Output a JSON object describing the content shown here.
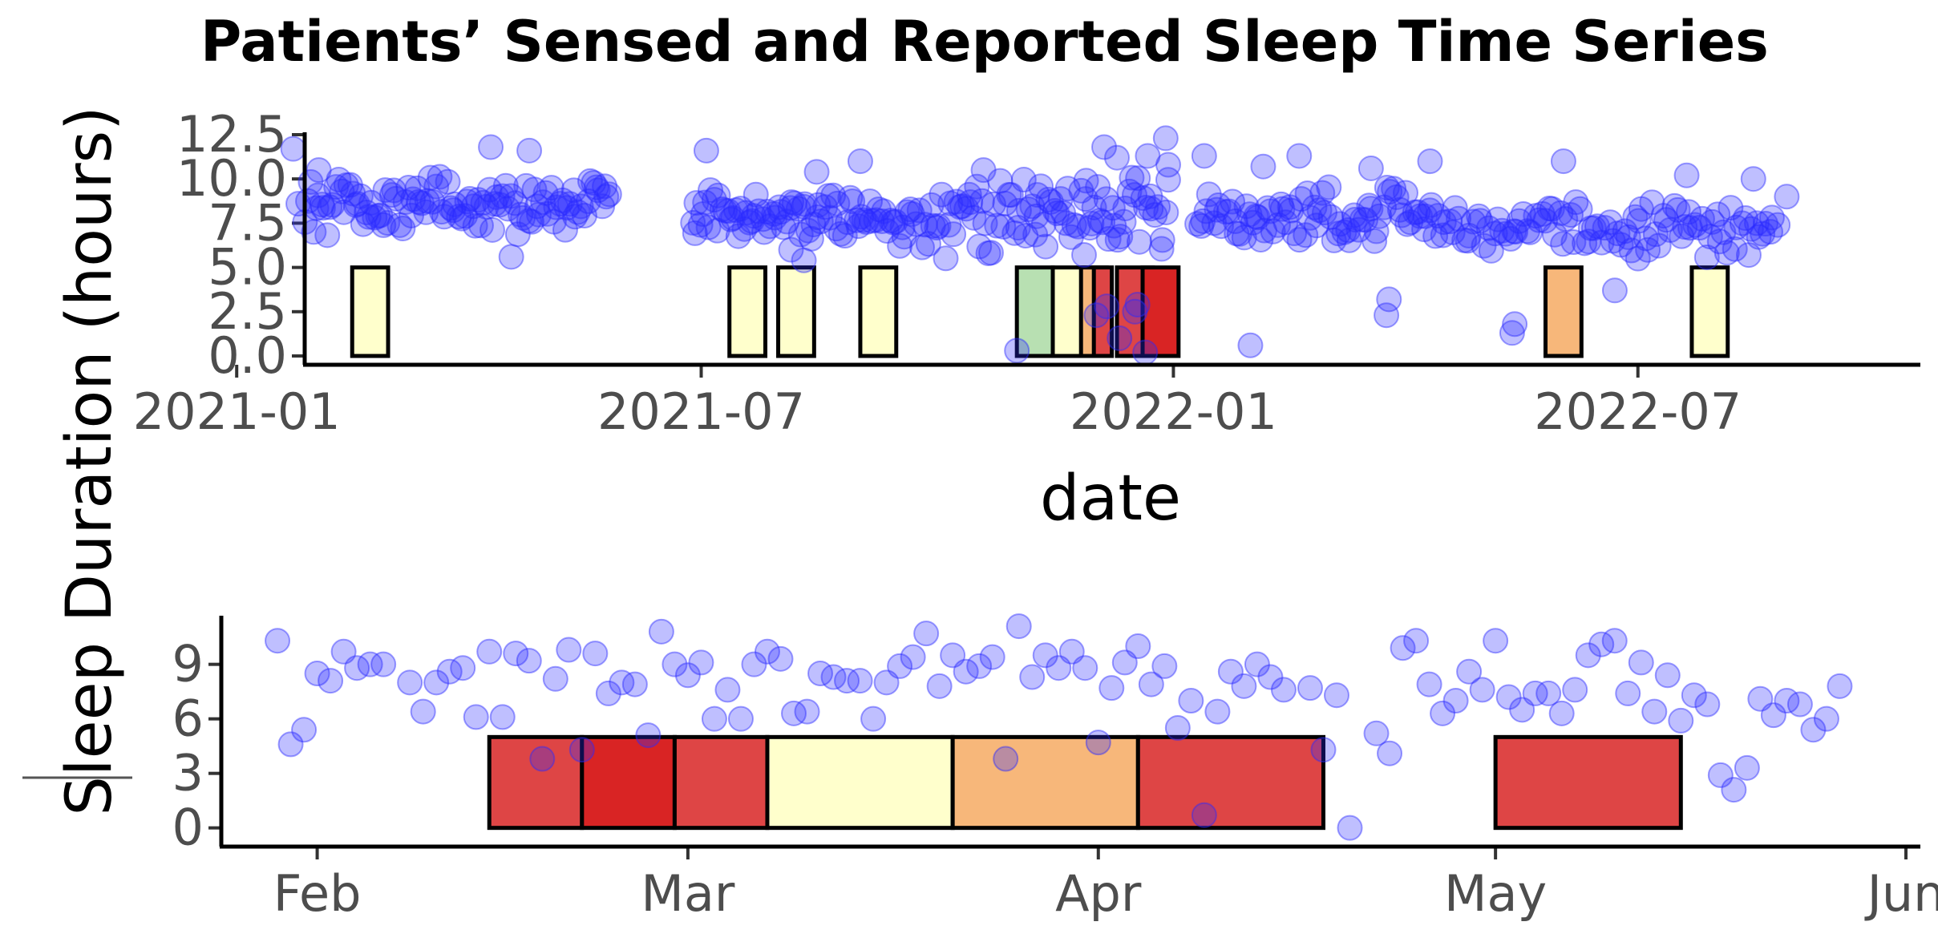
{
  "title": "Patients’ Sensed and Reported Sleep Time Series",
  "ylabel": "Sleep Duration (hours)",
  "chart_data": [
    {
      "type": "scatter",
      "panel": "overview",
      "xlabel": "date",
      "x_axis": "date",
      "xlim": [
        "2020-12-21",
        "2022-10-15"
      ],
      "ylim": [
        0,
        12.5
      ],
      "x_ticks": [
        "2021-01-01",
        "2021-07-01",
        "2022-01-01",
        "2022-07-01"
      ],
      "x_tick_labels": [
        "2021-01",
        "2021-07",
        "2022-01",
        "2022-07"
      ],
      "y_ticks": [
        0,
        2.5,
        5,
        7.5,
        10,
        12.5
      ],
      "y_tick_labels": [
        "0.0",
        "2.5",
        "5.0",
        "7.5",
        "10.0",
        "12.5"
      ],
      "grid": false,
      "point_color": "#2b2bff",
      "segments": [
        {
          "start": "2021-01-27",
          "end": "2021-05-27",
          "mean": 8.6,
          "jitter": 1.2,
          "count": 110
        },
        {
          "start": "2021-06-27",
          "end": "2021-08-24",
          "mean": 8.0,
          "jitter": 1.1,
          "count": 55
        },
        {
          "start": "2021-08-24",
          "end": "2021-10-25",
          "mean": 7.6,
          "jitter": 1.3,
          "count": 55
        },
        {
          "start": "2021-10-25",
          "end": "2021-12-31",
          "mean": 7.8,
          "jitter": 1.6,
          "count": 60
        },
        {
          "start": "2022-01-10",
          "end": "2022-04-15",
          "mean": 7.9,
          "jitter": 1.1,
          "count": 80
        },
        {
          "start": "2022-04-15",
          "end": "2022-08-25",
          "mean": 7.3,
          "jitter": 1.1,
          "count": 95
        }
      ],
      "extra_points": [
        {
          "x": "2021-01-23",
          "y": 11.7
        },
        {
          "x": "2021-01-25",
          "y": 8.6
        },
        {
          "x": "2021-02-02",
          "y": 10.5
        },
        {
          "x": "2021-04-10",
          "y": 11.8
        },
        {
          "x": "2021-04-25",
          "y": 11.6
        },
        {
          "x": "2021-04-18",
          "y": 5.6
        },
        {
          "x": "2021-07-03",
          "y": 11.6
        },
        {
          "x": "2021-08-15",
          "y": 10.4
        },
        {
          "x": "2021-08-05",
          "y": 6.0
        },
        {
          "x": "2021-08-10",
          "y": 5.4
        },
        {
          "x": "2021-09-01",
          "y": 11.0
        },
        {
          "x": "2021-10-19",
          "y": 10.5
        },
        {
          "x": "2021-11-01",
          "y": 0.3
        },
        {
          "x": "2021-11-09",
          "y": 9.1
        },
        {
          "x": "2021-11-28",
          "y": 9.9
        },
        {
          "x": "2021-12-05",
          "y": 11.8
        },
        {
          "x": "2021-12-10",
          "y": 11.2
        },
        {
          "x": "2021-12-22",
          "y": 11.3
        },
        {
          "x": "2021-12-29",
          "y": 12.3
        },
        {
          "x": "2021-12-30",
          "y": 10.8
        },
        {
          "x": "2021-12-06",
          "y": 2.8
        },
        {
          "x": "2021-12-02",
          "y": 2.3
        },
        {
          "x": "2021-12-11",
          "y": 1.0
        },
        {
          "x": "2021-12-18",
          "y": 2.9
        },
        {
          "x": "2021-12-21",
          "y": 0.2
        },
        {
          "x": "2021-12-17",
          "y": 2.5
        },
        {
          "x": "2022-01-31",
          "y": 0.6
        },
        {
          "x": "2022-01-13",
          "y": 11.3
        },
        {
          "x": "2022-02-05",
          "y": 10.7
        },
        {
          "x": "2022-02-19",
          "y": 11.3
        },
        {
          "x": "2022-03-19",
          "y": 10.6
        },
        {
          "x": "2022-03-25",
          "y": 2.3
        },
        {
          "x": "2022-03-26",
          "y": 3.2
        },
        {
          "x": "2022-04-11",
          "y": 11.0
        },
        {
          "x": "2022-05-13",
          "y": 1.3
        },
        {
          "x": "2022-05-14",
          "y": 1.8
        },
        {
          "x": "2022-06-02",
          "y": 11.0
        },
        {
          "x": "2022-06-22",
          "y": 3.7
        },
        {
          "x": "2022-07-01",
          "y": 5.5
        },
        {
          "x": "2022-07-20",
          "y": 10.2
        },
        {
          "x": "2022-08-15",
          "y": 10.0
        },
        {
          "x": "2022-08-28",
          "y": 9.0
        }
      ],
      "bands": [
        {
          "start": "2021-02-15",
          "end": "2021-03-01",
          "ymin": 0,
          "ymax": 5,
          "fill": "#ffffcc"
        },
        {
          "start": "2021-07-12",
          "end": "2021-07-26",
          "ymin": 0,
          "ymax": 5,
          "fill": "#ffffcc"
        },
        {
          "start": "2021-07-31",
          "end": "2021-08-14",
          "ymin": 0,
          "ymax": 5,
          "fill": "#ffffcc"
        },
        {
          "start": "2021-09-01",
          "end": "2021-09-15",
          "ymin": 0,
          "ymax": 5,
          "fill": "#ffffcc"
        },
        {
          "start": "2021-11-01",
          "end": "2021-11-15",
          "ymin": 0,
          "ymax": 5,
          "fill": "#b8e0b2"
        },
        {
          "start": "2021-11-15",
          "end": "2021-11-29",
          "ymin": 0,
          "ymax": 5,
          "fill": "#ffffcc"
        },
        {
          "start": "2021-11-26",
          "end": "2021-12-06",
          "ymin": 0,
          "ymax": 5,
          "fill": "#f7b77a"
        },
        {
          "start": "2021-12-01",
          "end": "2021-12-08",
          "ymin": 0,
          "ymax": 5,
          "fill": "#de4545"
        },
        {
          "start": "2021-12-10",
          "end": "2021-12-24",
          "ymin": 0,
          "ymax": 5,
          "fill": "#de4545"
        },
        {
          "start": "2021-12-20",
          "end": "2022-01-03",
          "ymin": 0,
          "ymax": 5,
          "fill": "#d92424"
        },
        {
          "start": "2022-05-26",
          "end": "2022-06-09",
          "ymin": 0,
          "ymax": 5,
          "fill": "#f7b77a"
        },
        {
          "start": "2022-07-22",
          "end": "2022-08-05",
          "ymin": 0,
          "ymax": 5,
          "fill": "#ffffcc"
        }
      ]
    },
    {
      "type": "scatter",
      "panel": "detail",
      "x_axis": "date",
      "xlim": [
        "2022-01-25",
        "2022-06-01"
      ],
      "ylim": [
        -0.5,
        11.5
      ],
      "x_ticks": [
        "2022-02-01",
        "2022-03-01",
        "2022-04-01",
        "2022-05-01",
        "2022-06-01"
      ],
      "x_tick_labels": [
        "Feb",
        "Mar",
        "Apr",
        "May",
        "Jun"
      ],
      "y_ticks": [
        0,
        3,
        6,
        9
      ],
      "y_tick_labels": [
        "0",
        "3",
        "6",
        "9"
      ],
      "grid": false,
      "point_color": "#2b2bff",
      "points": [
        {
          "x": "2022-01-29",
          "y": 10.3
        },
        {
          "x": "2022-01-30",
          "y": 4.6
        },
        {
          "x": "2022-01-31",
          "y": 5.4
        },
        {
          "x": "2022-02-01",
          "y": 8.5
        },
        {
          "x": "2022-02-02",
          "y": 8.1
        },
        {
          "x": "2022-02-03",
          "y": 9.7
        },
        {
          "x": "2022-02-04",
          "y": 8.8
        },
        {
          "x": "2022-02-05",
          "y": 9.0
        },
        {
          "x": "2022-02-06",
          "y": 9.0
        },
        {
          "x": "2022-02-08",
          "y": 8.0
        },
        {
          "x": "2022-02-09",
          "y": 6.4
        },
        {
          "x": "2022-02-10",
          "y": 8.0
        },
        {
          "x": "2022-02-11",
          "y": 8.6
        },
        {
          "x": "2022-02-12",
          "y": 8.8
        },
        {
          "x": "2022-02-13",
          "y": 6.1
        },
        {
          "x": "2022-02-14",
          "y": 9.7
        },
        {
          "x": "2022-02-15",
          "y": 6.1
        },
        {
          "x": "2022-02-16",
          "y": 9.6
        },
        {
          "x": "2022-02-17",
          "y": 9.2
        },
        {
          "x": "2022-02-18",
          "y": 3.8
        },
        {
          "x": "2022-02-19",
          "y": 8.2
        },
        {
          "x": "2022-02-20",
          "y": 9.8
        },
        {
          "x": "2022-02-21",
          "y": 4.3
        },
        {
          "x": "2022-02-22",
          "y": 9.6
        },
        {
          "x": "2022-02-23",
          "y": 7.4
        },
        {
          "x": "2022-02-24",
          "y": 8.0
        },
        {
          "x": "2022-02-25",
          "y": 7.9
        },
        {
          "x": "2022-02-26",
          "y": 5.1
        },
        {
          "x": "2022-02-27",
          "y": 10.8
        },
        {
          "x": "2022-02-28",
          "y": 9.0
        },
        {
          "x": "2022-03-01",
          "y": 8.4
        },
        {
          "x": "2022-03-02",
          "y": 9.1
        },
        {
          "x": "2022-03-03",
          "y": 6.0
        },
        {
          "x": "2022-03-04",
          "y": 7.6
        },
        {
          "x": "2022-03-05",
          "y": 6.0
        },
        {
          "x": "2022-03-06",
          "y": 9.0
        },
        {
          "x": "2022-03-07",
          "y": 9.7
        },
        {
          "x": "2022-03-08",
          "y": 9.3
        },
        {
          "x": "2022-03-09",
          "y": 6.3
        },
        {
          "x": "2022-03-10",
          "y": 6.4
        },
        {
          "x": "2022-03-11",
          "y": 8.5
        },
        {
          "x": "2022-03-12",
          "y": 8.3
        },
        {
          "x": "2022-03-13",
          "y": 8.1
        },
        {
          "x": "2022-03-14",
          "y": 8.1
        },
        {
          "x": "2022-03-15",
          "y": 6.0
        },
        {
          "x": "2022-03-16",
          "y": 8.0
        },
        {
          "x": "2022-03-17",
          "y": 8.9
        },
        {
          "x": "2022-03-18",
          "y": 9.4
        },
        {
          "x": "2022-03-19",
          "y": 10.7
        },
        {
          "x": "2022-03-20",
          "y": 7.8
        },
        {
          "x": "2022-03-21",
          "y": 9.5
        },
        {
          "x": "2022-03-22",
          "y": 8.6
        },
        {
          "x": "2022-03-23",
          "y": 8.9
        },
        {
          "x": "2022-03-24",
          "y": 9.4
        },
        {
          "x": "2022-03-25",
          "y": 3.8
        },
        {
          "x": "2022-03-26",
          "y": 11.1
        },
        {
          "x": "2022-03-27",
          "y": 8.3
        },
        {
          "x": "2022-03-28",
          "y": 9.5
        },
        {
          "x": "2022-03-29",
          "y": 8.8
        },
        {
          "x": "2022-03-30",
          "y": 9.7
        },
        {
          "x": "2022-03-31",
          "y": 8.8
        },
        {
          "x": "2022-04-01",
          "y": 4.7
        },
        {
          "x": "2022-04-02",
          "y": 7.7
        },
        {
          "x": "2022-04-03",
          "y": 9.1
        },
        {
          "x": "2022-04-04",
          "y": 10.0
        },
        {
          "x": "2022-04-05",
          "y": 7.9
        },
        {
          "x": "2022-04-06",
          "y": 8.9
        },
        {
          "x": "2022-04-07",
          "y": 5.5
        },
        {
          "x": "2022-04-08",
          "y": 7.0
        },
        {
          "x": "2022-04-09",
          "y": 0.7
        },
        {
          "x": "2022-04-10",
          "y": 6.4
        },
        {
          "x": "2022-04-11",
          "y": 8.6
        },
        {
          "x": "2022-04-12",
          "y": 7.8
        },
        {
          "x": "2022-04-13",
          "y": 9.0
        },
        {
          "x": "2022-04-14",
          "y": 8.3
        },
        {
          "x": "2022-04-15",
          "y": 7.6
        },
        {
          "x": "2022-04-17",
          "y": 7.7
        },
        {
          "x": "2022-04-18",
          "y": 4.3
        },
        {
          "x": "2022-04-19",
          "y": 7.3
        },
        {
          "x": "2022-04-20",
          "y": 0.0
        },
        {
          "x": "2022-04-22",
          "y": 5.2
        },
        {
          "x": "2022-04-23",
          "y": 4.1
        },
        {
          "x": "2022-04-24",
          "y": 9.9
        },
        {
          "x": "2022-04-25",
          "y": 10.3
        },
        {
          "x": "2022-04-26",
          "y": 7.9
        },
        {
          "x": "2022-04-27",
          "y": 6.3
        },
        {
          "x": "2022-04-28",
          "y": 7.0
        },
        {
          "x": "2022-04-29",
          "y": 8.6
        },
        {
          "x": "2022-04-30",
          "y": 7.6
        },
        {
          "x": "2022-05-01",
          "y": 10.3
        },
        {
          "x": "2022-05-02",
          "y": 7.2
        },
        {
          "x": "2022-05-03",
          "y": 6.5
        },
        {
          "x": "2022-05-04",
          "y": 7.4
        },
        {
          "x": "2022-05-05",
          "y": 7.4
        },
        {
          "x": "2022-05-06",
          "y": 6.3
        },
        {
          "x": "2022-05-07",
          "y": 7.6
        },
        {
          "x": "2022-05-08",
          "y": 9.5
        },
        {
          "x": "2022-05-09",
          "y": 10.1
        },
        {
          "x": "2022-05-10",
          "y": 10.3
        },
        {
          "x": "2022-05-11",
          "y": 7.4
        },
        {
          "x": "2022-05-12",
          "y": 9.1
        },
        {
          "x": "2022-05-13",
          "y": 6.4
        },
        {
          "x": "2022-05-14",
          "y": 8.4
        },
        {
          "x": "2022-05-15",
          "y": 5.9
        },
        {
          "x": "2022-05-16",
          "y": 7.3
        },
        {
          "x": "2022-05-17",
          "y": 6.8
        },
        {
          "x": "2022-05-18",
          "y": 2.9
        },
        {
          "x": "2022-05-19",
          "y": 2.1
        },
        {
          "x": "2022-05-20",
          "y": 3.3
        },
        {
          "x": "2022-05-21",
          "y": 7.1
        },
        {
          "x": "2022-05-22",
          "y": 6.2
        },
        {
          "x": "2022-05-23",
          "y": 7.0
        },
        {
          "x": "2022-05-24",
          "y": 6.8
        },
        {
          "x": "2022-05-25",
          "y": 5.4
        },
        {
          "x": "2022-05-26",
          "y": 6.0
        },
        {
          "x": "2022-05-27",
          "y": 7.8
        }
      ],
      "bands": [
        {
          "start": "2022-02-14",
          "end": "2022-02-21",
          "ymin": 0,
          "ymax": 5,
          "fill": "#de4545"
        },
        {
          "start": "2022-02-21",
          "end": "2022-02-28",
          "ymin": 0,
          "ymax": 5,
          "fill": "#d92424"
        },
        {
          "start": "2022-02-28",
          "end": "2022-03-07",
          "ymin": 0,
          "ymax": 5,
          "fill": "#de4545"
        },
        {
          "start": "2022-03-07",
          "end": "2022-03-21",
          "ymin": 0,
          "ymax": 5,
          "fill": "#ffffcc"
        },
        {
          "start": "2022-03-21",
          "end": "2022-04-04",
          "ymin": 0,
          "ymax": 5,
          "fill": "#f7b77a"
        },
        {
          "start": "2022-04-04",
          "end": "2022-04-18",
          "ymin": 0,
          "ymax": 5,
          "fill": "#de4545"
        },
        {
          "start": "2022-05-01",
          "end": "2022-05-15",
          "ymin": 0,
          "ymax": 5,
          "fill": "#de4545"
        }
      ]
    }
  ]
}
